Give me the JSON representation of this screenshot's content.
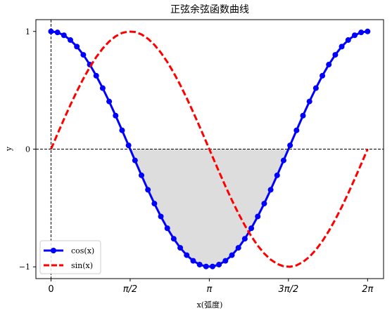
{
  "chart_data": {
    "type": "line",
    "title": "正弦余弦函数曲线",
    "xlabel": "x(弧度)",
    "ylabel": "y",
    "xlim": [
      -0.3,
      6.6
    ],
    "ylim": [
      -1.1,
      1.1
    ],
    "x_ticks": [
      {
        "value": 0,
        "label": "0"
      },
      {
        "value": 1.5708,
        "label": "π/2"
      },
      {
        "value": 3.1416,
        "label": "π"
      },
      {
        "value": 4.7124,
        "label": "3π/2"
      },
      {
        "value": 6.2832,
        "label": "2π"
      }
    ],
    "y_ticks": [
      {
        "value": -1,
        "label": "−1"
      },
      {
        "value": 0,
        "label": "0"
      },
      {
        "value": 1,
        "label": "1"
      }
    ],
    "grid": false,
    "legend": {
      "placement": "lower-left"
    },
    "reference_lines": {
      "horizontal": 0,
      "vertical": 0,
      "style": "dashed",
      "color": "#000000"
    },
    "shaded_region": {
      "description": "area between cos(x) and 0 where cos(x) < 0",
      "color": "#dddddd"
    },
    "x": [
      0,
      0.1282,
      0.2565,
      0.3847,
      0.5129,
      0.6411,
      0.7694,
      0.8976,
      1.0258,
      1.1541,
      1.2823,
      1.4105,
      1.5387,
      1.667,
      1.7952,
      1.9234,
      2.0517,
      2.1799,
      2.3081,
      2.4363,
      2.5646,
      2.6928,
      2.821,
      2.9493,
      3.0775,
      3.2057,
      3.3339,
      3.4622,
      3.5904,
      3.7186,
      3.8468,
      3.9751,
      4.1033,
      4.2315,
      4.3598,
      4.488,
      4.6162,
      4.7444,
      4.8727,
      5.0009,
      5.1291,
      5.2574,
      5.3856,
      5.5138,
      5.642,
      5.7703,
      5.8985,
      6.0267,
      6.155,
      6.2832
    ],
    "series": [
      {
        "name": "cos(x)",
        "color": "#0000ff",
        "style": "solid",
        "marker": "circle",
        "values": [
          1.0,
          0.9918,
          0.9673,
          0.9269,
          0.8713,
          0.8014,
          0.7183,
          0.6235,
          0.5184,
          0.4048,
          0.2846,
          0.1596,
          0.032,
          -0.096,
          -0.2225,
          -0.3453,
          -0.4625,
          -0.5721,
          -0.6723,
          -0.7615,
          -0.8381,
          -0.9008,
          -0.9486,
          -0.9808,
          -0.9969,
          -0.9969,
          -0.9808,
          -0.9486,
          -0.9008,
          -0.8381,
          -0.7615,
          -0.6723,
          -0.5721,
          -0.4625,
          -0.3453,
          -0.2225,
          -0.096,
          0.032,
          0.1596,
          0.2846,
          0.4048,
          0.5184,
          0.6235,
          0.7183,
          0.8014,
          0.8713,
          0.9269,
          0.9673,
          0.9918,
          1.0
        ]
      },
      {
        "name": "sin(x)",
        "color": "#ff0000",
        "style": "dashed",
        "marker": "none",
        "values": [
          0.0,
          0.1279,
          0.2537,
          0.3753,
          0.4907,
          0.5981,
          0.6956,
          0.7818,
          0.8551,
          0.9144,
          0.9587,
          0.9872,
          0.9995,
          0.9954,
          0.9749,
          0.9385,
          0.8866,
          0.8202,
          0.7403,
          0.6482,
          0.5455,
          0.4339,
          0.3151,
          0.1912,
          0.0641,
          -0.0641,
          -0.1912,
          -0.3151,
          -0.4339,
          -0.5455,
          -0.6482,
          -0.7403,
          -0.8202,
          -0.8866,
          -0.9385,
          -0.9749,
          -0.9954,
          -0.9995,
          -0.9872,
          -0.9587,
          -0.9144,
          -0.8551,
          -0.7818,
          -0.6956,
          -0.5981,
          -0.4907,
          -0.3753,
          -0.2537,
          -0.1279,
          0.0
        ]
      }
    ]
  }
}
